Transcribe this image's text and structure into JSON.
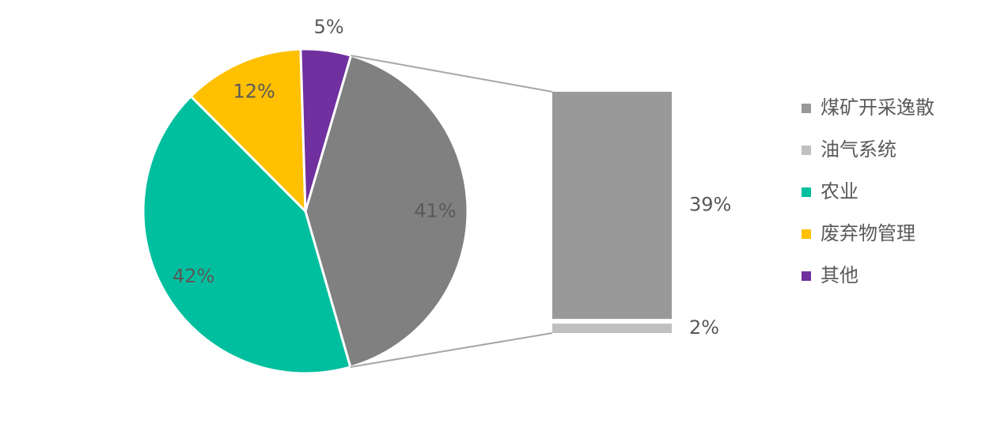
{
  "chart_data": {
    "type": "bar-of-pie",
    "categories": [
      "煤矿开采逸散",
      "油气系统",
      "农业",
      "废弃物管理",
      "其他"
    ],
    "values": [
      39,
      2,
      42,
      12,
      5
    ],
    "value_labels": [
      "39%",
      "2%",
      "42%",
      "12%",
      "5%"
    ],
    "colors": [
      "#999999",
      "#c0c0c0",
      "#00bf9f",
      "#ffc000",
      "#7030a0"
    ],
    "split": 2,
    "combined": {
      "value": 41,
      "value_label": "41%",
      "color": "#808080"
    },
    "legend": "right"
  }
}
